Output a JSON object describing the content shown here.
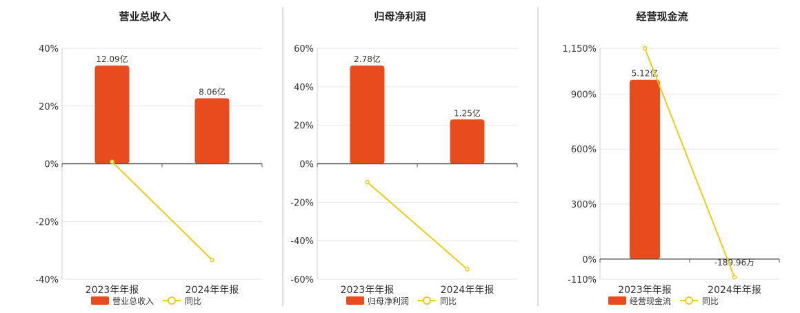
{
  "colors": {
    "bar": "#e84c1c",
    "line": "#f2cc0c",
    "grid": "#e5e5e5",
    "axis": "#555555",
    "divider": "#bbbbbb",
    "text": "#333333"
  },
  "legend": {
    "yoy_label": "同比"
  },
  "chart_data": [
    {
      "type": "bar",
      "title": "营业总收入",
      "categories": [
        "2023年年报",
        "2024年年报"
      ],
      "yticks": [
        40,
        20,
        0,
        -20,
        -40
      ],
      "ytick_labels": [
        "40%",
        "20%",
        "0%",
        "-20%",
        "-40%"
      ],
      "ylim": [
        -40,
        40
      ],
      "series": [
        {
          "name": "营业总收入",
          "kind": "bar",
          "values": [
            34,
            22.7
          ],
          "labels": [
            "12.09亿",
            "8.06亿"
          ]
        },
        {
          "name": "同比",
          "kind": "line",
          "values": [
            0.7,
            -33.3
          ]
        }
      ]
    },
    {
      "type": "bar",
      "title": "归母净利润",
      "categories": [
        "2023年年报",
        "2024年年报"
      ],
      "yticks": [
        60,
        40,
        20,
        0,
        -20,
        -40,
        -60
      ],
      "ytick_labels": [
        "60%",
        "40%",
        "20%",
        "0%",
        "-20%",
        "-40%",
        "-60%"
      ],
      "ylim": [
        -60,
        60
      ],
      "series": [
        {
          "name": "归母净利润",
          "kind": "bar",
          "values": [
            51,
            23
          ],
          "labels": [
            "2.78亿",
            "1.25亿"
          ]
        },
        {
          "name": "同比",
          "kind": "line",
          "values": [
            -9.5,
            -54.8
          ]
        }
      ]
    },
    {
      "type": "bar",
      "title": "经营现金流",
      "categories": [
        "2023年年报",
        "2024年年报"
      ],
      "yticks": [
        1150,
        900,
        600,
        300,
        0,
        -110
      ],
      "ytick_labels": [
        "1,150%",
        "900%",
        "600%",
        "300%",
        "0%",
        "-110%"
      ],
      "ylim": [
        -110,
        1150
      ],
      "series": [
        {
          "name": "经营现金流",
          "kind": "bar",
          "values": [
            978,
            -0.5
          ],
          "labels": [
            "5.12亿",
            "-189.96万"
          ]
        },
        {
          "name": "同比",
          "kind": "line",
          "values": [
            1150,
            -99
          ]
        }
      ]
    }
  ]
}
